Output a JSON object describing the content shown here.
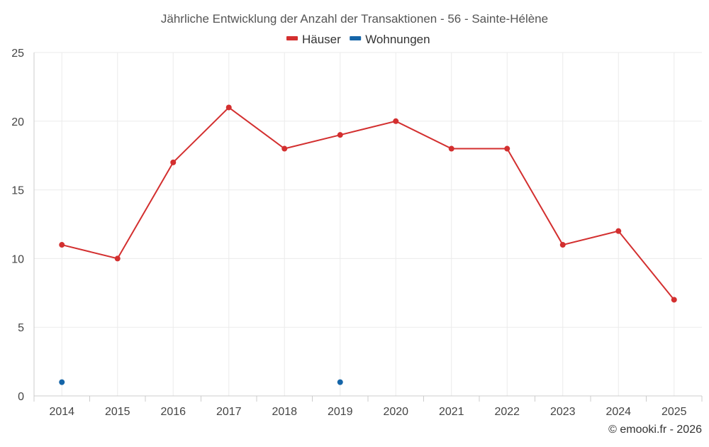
{
  "chart_data": {
    "type": "line",
    "title": "Jährliche Entwicklung der Anzahl der Transaktionen - 56 - Sainte-Hélène",
    "categories": [
      "2014",
      "2015",
      "2016",
      "2017",
      "2018",
      "2019",
      "2020",
      "2021",
      "2022",
      "2023",
      "2024",
      "2025"
    ],
    "series": [
      {
        "name": "Häuser",
        "color": "#d32f2f",
        "values": [
          11,
          10,
          17,
          21,
          18,
          19,
          20,
          18,
          18,
          11,
          12,
          7
        ]
      },
      {
        "name": "Wohnungen",
        "color": "#1565a8",
        "values": [
          1,
          null,
          null,
          null,
          null,
          1,
          null,
          null,
          null,
          null,
          null,
          null
        ]
      }
    ],
    "ylim": [
      0,
      25
    ],
    "yticks": [
      0,
      5,
      10,
      15,
      20,
      25
    ],
    "grid": true,
    "legend": "top-center",
    "xlabel": "",
    "ylabel": ""
  },
  "footer": {
    "credit": "© emooki.fr - 2026"
  }
}
